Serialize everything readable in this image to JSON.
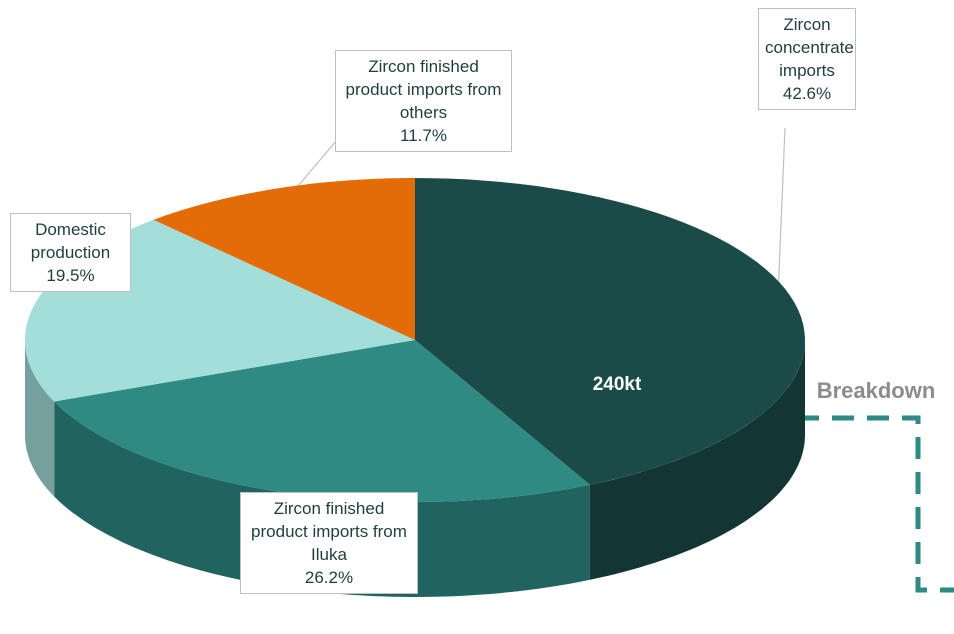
{
  "chart_data": {
    "type": "pie",
    "categories": [
      "Zircon concentrate imports",
      "Zircon finished product imports from Iluka",
      "Domestic production",
      "Zircon finished product imports from others"
    ],
    "values": [
      42.6,
      26.2,
      19.5,
      11.7
    ],
    "value_labels": [
      "42.6%",
      "26.2%",
      "19.5%",
      "11.7%"
    ],
    "colors": [
      "#1b4b48",
      "#2e8a82",
      "#a3dedb",
      "#e36c09"
    ],
    "annotations": [
      "240kt",
      "Breakdown"
    ]
  }
}
